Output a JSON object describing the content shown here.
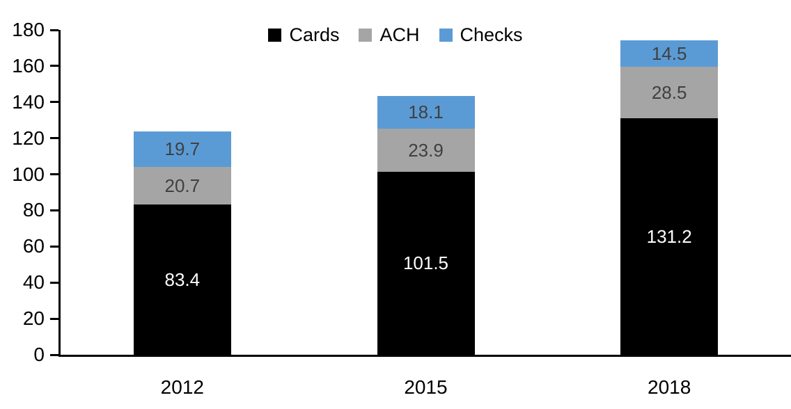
{
  "chart_data": {
    "type": "bar",
    "stacked": true,
    "title": "",
    "categories": [
      "2012",
      "2015",
      "2018"
    ],
    "series": [
      {
        "name": "Cards",
        "color": "#000000",
        "label_color": "#ffffff",
        "values": [
          83.4,
          101.5,
          131.2
        ]
      },
      {
        "name": "ACH",
        "color": "#a5a5a5",
        "label_color": "#404040",
        "values": [
          20.7,
          23.9,
          28.5
        ]
      },
      {
        "name": "Checks",
        "color": "#5b9bd5",
        "label_color": "#404040",
        "values": [
          19.7,
          18.1,
          14.5
        ]
      }
    ],
    "xlabel": "",
    "ylabel": "",
    "ylim": [
      0,
      180
    ],
    "yticks": [
      0,
      20,
      40,
      60,
      80,
      100,
      120,
      140,
      160,
      180
    ],
    "grid": false,
    "legend_position": "top",
    "axis_color": "#000000"
  }
}
